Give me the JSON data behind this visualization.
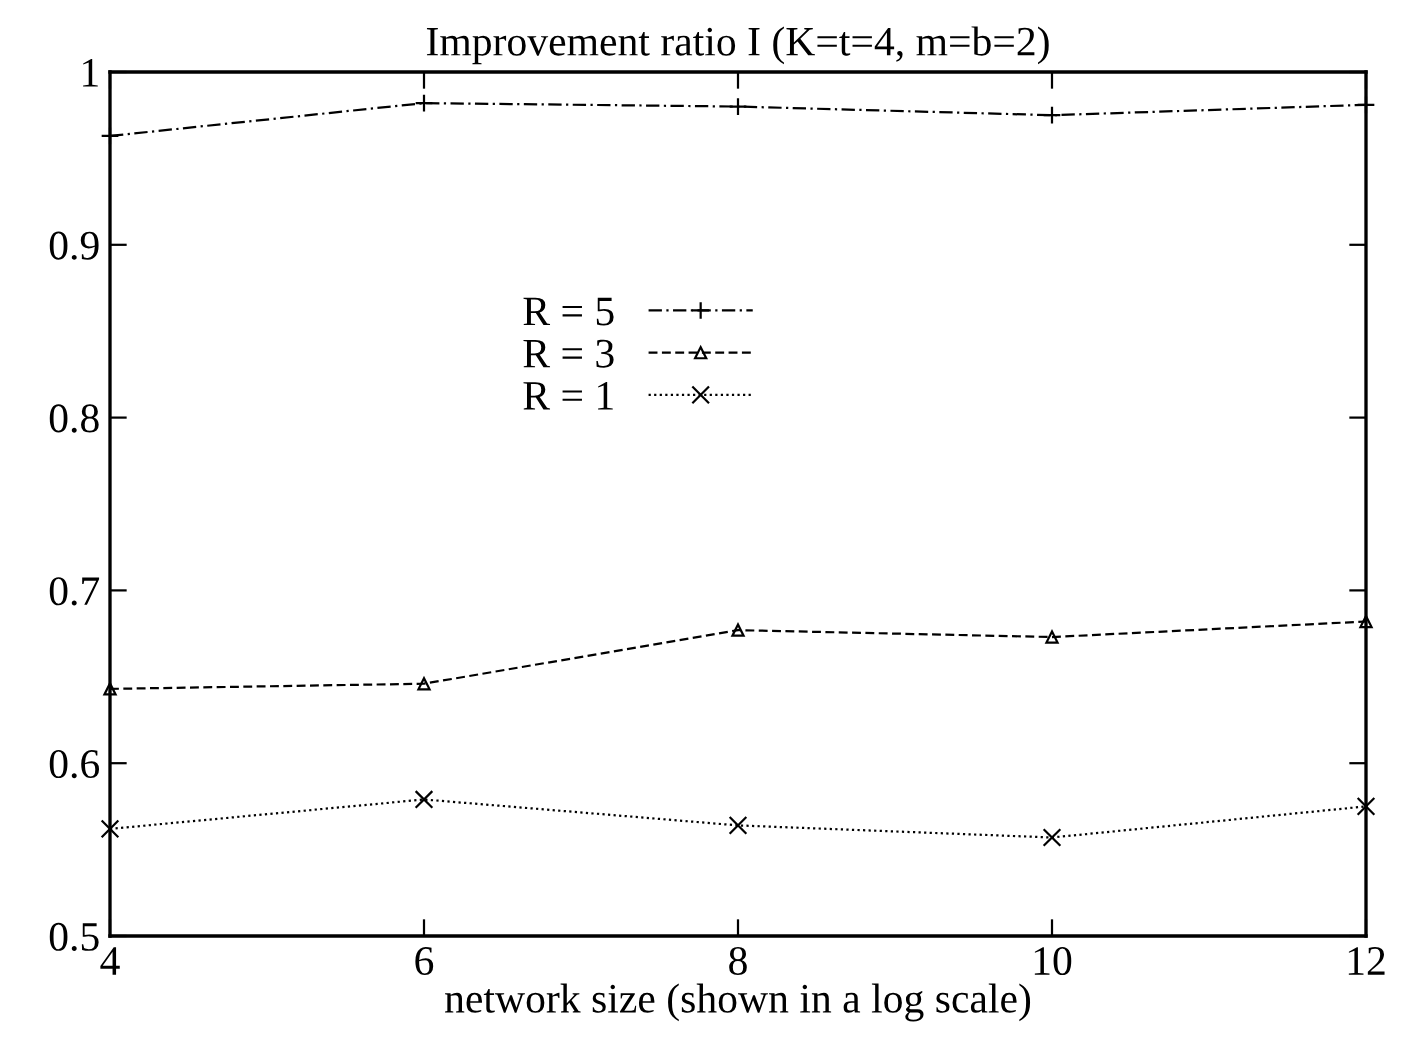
{
  "chart_data": {
    "type": "line",
    "title": "Improvement ratio I (K=t=4, m=b=2)",
    "xlabel": "network size (shown in a log scale)",
    "x": [
      4,
      6,
      8,
      10,
      12
    ],
    "series": [
      {
        "name": "R = 5",
        "color": "#000000",
        "line_style": "dashdot",
        "marker": "plus",
        "values": [
          0.963,
          0.982,
          0.98,
          0.975,
          0.981
        ]
      },
      {
        "name": "R = 3",
        "color": "#000000",
        "line_style": "dashed",
        "marker": "triangle",
        "values": [
          0.643,
          0.646,
          0.677,
          0.673,
          0.682
        ]
      },
      {
        "name": "R = 1",
        "color": "#000000",
        "line_style": "dotted",
        "marker": "cross",
        "values": [
          0.562,
          0.579,
          0.564,
          0.557,
          0.575
        ]
      }
    ],
    "xlim": [
      4,
      12
    ],
    "xticks": [
      4,
      6,
      8,
      10,
      12
    ],
    "ylim": [
      0.5,
      1
    ],
    "yticks": [
      0.5,
      0.6,
      0.7,
      0.8,
      0.9,
      1
    ],
    "grid": false,
    "legend": "center"
  }
}
